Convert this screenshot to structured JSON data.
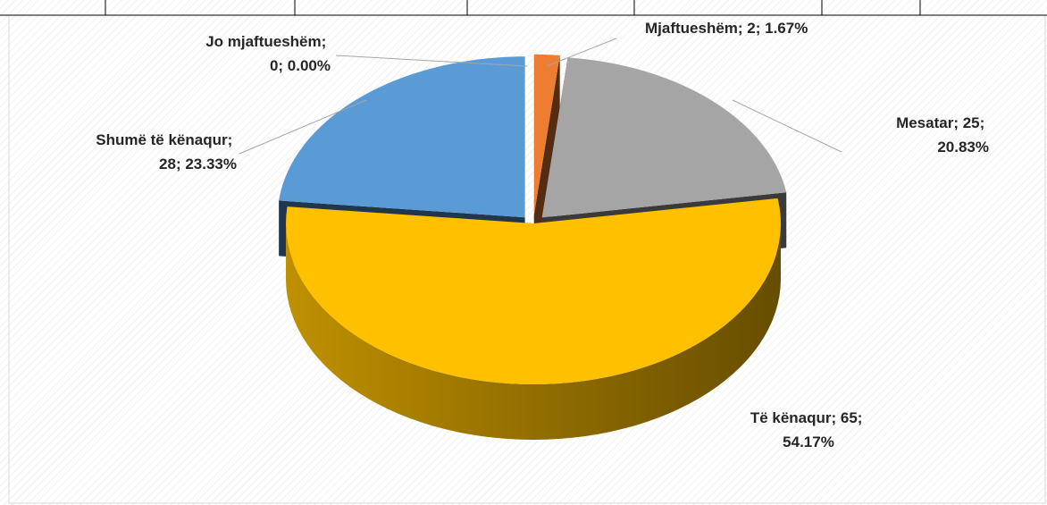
{
  "chart_data": {
    "type": "pie",
    "values": [
      0,
      2,
      25,
      65,
      28
    ],
    "value_labels": [
      "Jo mjaftueshëm; 0; 0.00%",
      "Mjaftueshëm; 2; 1.67%",
      "Mesatar; 25; 20.83%",
      "Të kënaqur; 65; 54.17%",
      "Shumë të kënaqur; 28; 23.33%"
    ],
    "colors": [
      "#4472c4",
      "#ed7d31",
      "#a5a5a5",
      "#ffc000",
      "#5b9bd5"
    ]
  }
}
